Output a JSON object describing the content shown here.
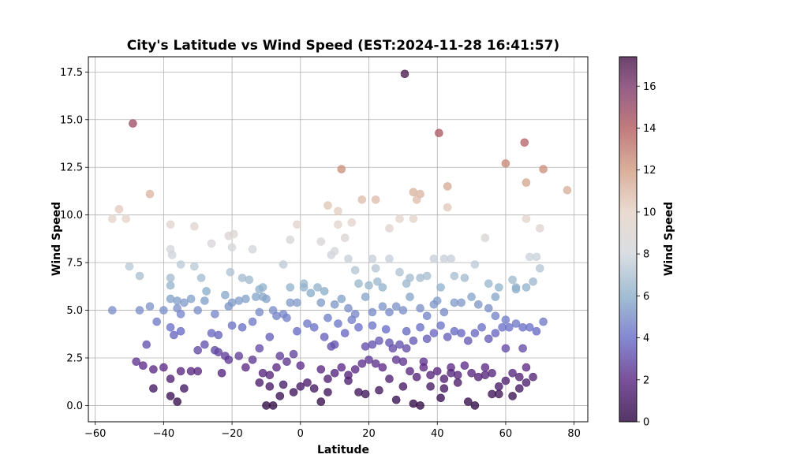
{
  "chart_data": {
    "type": "scatter",
    "title": "City's Latitude vs Wind Speed (EST:2024-11-28 16:41:57)",
    "xlabel": "Latitude",
    "ylabel": "Wind Speed",
    "xlim": [
      -62,
      84
    ],
    "ylim": [
      -0.85,
      18.3
    ],
    "xticks": [
      -60,
      -40,
      -20,
      0,
      20,
      40,
      60,
      80
    ],
    "yticks": [
      0.0,
      2.5,
      5.0,
      7.5,
      10.0,
      12.5,
      15.0,
      17.5
    ],
    "xtick_labels": [
      "−60",
      "−40",
      "−20",
      "0",
      "20",
      "40",
      "60",
      "80"
    ],
    "ytick_labels": [
      "0.0",
      "2.5",
      "5.0",
      "7.5",
      "10.0",
      "12.5",
      "15.0",
      "17.5"
    ],
    "grid": true,
    "colormap": "twilight_shifted",
    "colorbar": {
      "label": "Wind Speed",
      "range": [
        0,
        17.4
      ],
      "ticks": [
        0,
        2,
        4,
        6,
        8,
        10,
        12,
        14,
        16
      ],
      "tick_labels": [
        "0",
        "2",
        "4",
        "6",
        "8",
        "10",
        "12",
        "14",
        "16"
      ]
    },
    "colors": {
      "c0": "#2f0a44",
      "c2": "#5d2a86",
      "c4": "#6a6ec8",
      "c6": "#8db0ca",
      "c8": "#d2d6dc",
      "c10": "#e6d3c8",
      "c12": "#d29e85",
      "c14": "#b45e61",
      "c16": "#7e3a6e",
      "c17": "#4a1a4c"
    },
    "points": [
      [
        -55,
        9.8
      ],
      [
        -53,
        10.3
      ],
      [
        -51,
        9.8
      ],
      [
        -44,
        11.1
      ],
      [
        -49,
        14.8
      ],
      [
        30.5,
        17.4
      ],
      [
        40.5,
        14.3
      ],
      [
        12,
        12.4
      ],
      [
        43,
        11.5
      ],
      [
        33,
        11.2
      ],
      [
        35,
        11.1
      ],
      [
        34,
        10.8
      ],
      [
        22,
        10.8
      ],
      [
        18,
        10.8
      ],
      [
        8,
        10.5
      ],
      [
        11,
        10.2
      ],
      [
        43,
        10.4
      ],
      [
        60,
        12.7
      ],
      [
        65.5,
        13.8
      ],
      [
        66,
        11.7
      ],
      [
        71,
        12.4
      ],
      [
        78,
        11.3
      ],
      [
        -38,
        9.5
      ],
      [
        -31,
        9.4
      ],
      [
        -21,
        8.9
      ],
      [
        -19.5,
        9.0
      ],
      [
        -14,
        8.2
      ],
      [
        -3,
        8.7
      ],
      [
        -1,
        9.5
      ],
      [
        6,
        8.6
      ],
      [
        9,
        7.9
      ],
      [
        10,
        8.1
      ],
      [
        11,
        9.5
      ],
      [
        13,
        8.8
      ],
      [
        15,
        9.6
      ],
      [
        26,
        9.3
      ],
      [
        29,
        9.8
      ],
      [
        33,
        9.8
      ],
      [
        54,
        8.8
      ],
      [
        66,
        9.8
      ],
      [
        70,
        9.3
      ],
      [
        -38,
        8.2
      ],
      [
        -37.5,
        7.9
      ],
      [
        -20,
        8.3
      ],
      [
        -26,
        8.5
      ],
      [
        -50,
        7.3
      ],
      [
        -47,
        6.8
      ],
      [
        -38,
        6.7
      ],
      [
        -38,
        6.3
      ],
      [
        -35,
        7.4
      ],
      [
        -31,
        7.3
      ],
      [
        -29,
        6.7
      ],
      [
        -27.5,
        6.0
      ],
      [
        -20.5,
        7.0
      ],
      [
        -17,
        6.7
      ],
      [
        -15,
        6.6
      ],
      [
        -11,
        6.2
      ],
      [
        -5,
        7.4
      ],
      [
        -3,
        6.2
      ],
      [
        1,
        6.4
      ],
      [
        -12,
        6.1
      ],
      [
        5,
        6.2
      ],
      [
        7,
        6.0
      ],
      [
        14,
        7.7
      ],
      [
        16,
        7.1
      ],
      [
        17,
        6.4
      ],
      [
        21,
        7.7
      ],
      [
        22,
        7.2
      ],
      [
        22.5,
        6.5
      ],
      [
        24,
        6.2
      ],
      [
        26,
        7.7
      ],
      [
        29,
        7.0
      ],
      [
        31,
        6.4
      ],
      [
        32,
        6.7
      ],
      [
        35,
        6.7
      ],
      [
        37,
        6.8
      ],
      [
        39,
        7.7
      ],
      [
        42,
        7.7
      ],
      [
        44,
        7.7
      ],
      [
        48,
        6.7
      ],
      [
        51,
        7.4
      ],
      [
        55,
        6.4
      ],
      [
        58,
        6.2
      ],
      [
        62,
        6.6
      ],
      [
        63,
        6.2
      ],
      [
        66,
        6.2
      ],
      [
        67,
        7.8
      ],
      [
        69,
        7.8
      ],
      [
        70,
        7.2
      ],
      [
        68,
        6.5
      ],
      [
        20,
        6.3
      ],
      [
        41,
        6.2
      ],
      [
        45,
        6.8
      ],
      [
        -55,
        5.0
      ],
      [
        -47,
        5.0
      ],
      [
        -44,
        5.2
      ],
      [
        -42,
        4.4
      ],
      [
        -40,
        5.0
      ],
      [
        -38,
        5.6
      ],
      [
        -36,
        5.1
      ],
      [
        -34,
        5.4
      ],
      [
        -32,
        5.6
      ],
      [
        -30,
        5.0
      ],
      [
        -28,
        5.5
      ],
      [
        -25,
        4.8
      ],
      [
        -22,
        5.8
      ],
      [
        -20,
        5.4
      ],
      [
        -18,
        5.5
      ],
      [
        -16,
        5.6
      ],
      [
        -13,
        5.7
      ],
      [
        -10,
        5.6
      ],
      [
        -8,
        5.0
      ],
      [
        -5,
        4.8
      ],
      [
        -3,
        5.4
      ],
      [
        -1,
        5.4
      ],
      [
        1,
        6.2
      ],
      [
        3,
        5.9
      ],
      [
        6,
        5.4
      ],
      [
        8,
        4.6
      ],
      [
        10,
        5.3
      ],
      [
        12,
        5.6
      ],
      [
        14,
        5.1
      ],
      [
        16,
        4.8
      ],
      [
        19,
        5.7
      ],
      [
        21,
        4.9
      ],
      [
        24,
        5.2
      ],
      [
        26,
        4.9
      ],
      [
        28,
        5.2
      ],
      [
        30,
        5.0
      ],
      [
        32,
        5.7
      ],
      [
        35,
        5.1
      ],
      [
        37,
        4.7
      ],
      [
        40,
        5.5
      ],
      [
        42,
        4.9
      ],
      [
        45,
        5.4
      ],
      [
        47,
        5.4
      ],
      [
        50,
        5.7
      ],
      [
        52,
        5.3
      ],
      [
        55,
        5.1
      ],
      [
        57,
        4.7
      ],
      [
        60,
        4.5
      ],
      [
        -35,
        4.8
      ],
      [
        -36,
        5.5
      ],
      [
        -21,
        5.2
      ],
      [
        -11,
        5.7
      ],
      [
        39,
        5.3
      ],
      [
        57,
        5.7
      ],
      [
        63,
        6.1
      ],
      [
        -38,
        4.1
      ],
      [
        -35,
        3.9
      ],
      [
        -28,
        3.2
      ],
      [
        -26,
        3.8
      ],
      [
        -24,
        3.7
      ],
      [
        -20,
        4.2
      ],
      [
        -17,
        4.1
      ],
      [
        -14,
        4.4
      ],
      [
        -12,
        4.9
      ],
      [
        -9,
        3.6
      ],
      [
        -7,
        4.7
      ],
      [
        -4,
        4.6
      ],
      [
        -1,
        3.9
      ],
      [
        2,
        4.3
      ],
      [
        4,
        4.1
      ],
      [
        7,
        3.6
      ],
      [
        9,
        3.1
      ],
      [
        11,
        4.3
      ],
      [
        13,
        3.8
      ],
      [
        15,
        4.5
      ],
      [
        17,
        4.1
      ],
      [
        19,
        3.1
      ],
      [
        21,
        4.2
      ],
      [
        23,
        3.4
      ],
      [
        25,
        4.0
      ],
      [
        27,
        3.0
      ],
      [
        29,
        3.2
      ],
      [
        31,
        3.9
      ],
      [
        33,
        3.4
      ],
      [
        35,
        4.1
      ],
      [
        37,
        3.5
      ],
      [
        39,
        3.8
      ],
      [
        41,
        4.2
      ],
      [
        43,
        3.6
      ],
      [
        45,
        3.9
      ],
      [
        47,
        3.8
      ],
      [
        49,
        3.4
      ],
      [
        51,
        3.8
      ],
      [
        53,
        4.1
      ],
      [
        55,
        3.5
      ],
      [
        57,
        3.8
      ],
      [
        59,
        4.1
      ],
      [
        61,
        4.1
      ],
      [
        63,
        4.3
      ],
      [
        65,
        4.1
      ],
      [
        67,
        4.1
      ],
      [
        69,
        3.9
      ],
      [
        71,
        4.4
      ],
      [
        -45,
        3.2
      ],
      [
        -37,
        3.7
      ],
      [
        -30,
        2.9
      ],
      [
        -22,
        2.6
      ],
      [
        -12,
        3.0
      ],
      [
        -6,
        2.6
      ],
      [
        10,
        3.2
      ],
      [
        26,
        3.3
      ],
      [
        -48,
        2.3
      ],
      [
        -46,
        2.1
      ],
      [
        -43,
        1.9
      ],
      [
        -38,
        1.4
      ],
      [
        -35,
        1.8
      ],
      [
        -32,
        1.8
      ],
      [
        -30,
        1.8
      ],
      [
        -24,
        2.8
      ],
      [
        -23,
        1.7
      ],
      [
        -21,
        2.4
      ],
      [
        -18,
        2.6
      ],
      [
        -16,
        2.0
      ],
      [
        -14,
        2.4
      ],
      [
        -11,
        1.7
      ],
      [
        -9,
        1.6
      ],
      [
        -7,
        2.0
      ],
      [
        -4,
        2.3
      ],
      [
        -2,
        2.7
      ],
      [
        0,
        2.1
      ],
      [
        2,
        1.2
      ],
      [
        4,
        0.9
      ],
      [
        6,
        1.9
      ],
      [
        8,
        1.4
      ],
      [
        10,
        1.7
      ],
      [
        12,
        2.0
      ],
      [
        14,
        1.6
      ],
      [
        16,
        1.9
      ],
      [
        18,
        2.2
      ],
      [
        20,
        2.4
      ],
      [
        22,
        2.2
      ],
      [
        24,
        2.0
      ],
      [
        26,
        1.4
      ],
      [
        28,
        2.4
      ],
      [
        30,
        2.3
      ],
      [
        32,
        1.8
      ],
      [
        34,
        1.5
      ],
      [
        36,
        2.3
      ],
      [
        38,
        1.6
      ],
      [
        40,
        1.8
      ],
      [
        42,
        1.4
      ],
      [
        44,
        2.0
      ],
      [
        46,
        1.6
      ],
      [
        48,
        2.1
      ],
      [
        50,
        1.7
      ],
      [
        52,
        1.5
      ],
      [
        54,
        2.0
      ],
      [
        56,
        1.7
      ],
      [
        58,
        1.0
      ],
      [
        60,
        1.3
      ],
      [
        62,
        1.7
      ],
      [
        64,
        1.5
      ],
      [
        66,
        2.0
      ],
      [
        68,
        1.5
      ],
      [
        -43,
        0.9
      ],
      [
        -38,
        0.5
      ],
      [
        -36,
        0.2
      ],
      [
        -34,
        0.9
      ],
      [
        -10,
        0.0
      ],
      [
        -8,
        0.0
      ],
      [
        -6,
        0.5
      ],
      [
        -2,
        0.7
      ],
      [
        6,
        0.2
      ],
      [
        8,
        0.7
      ],
      [
        17,
        0.7
      ],
      [
        19,
        0.6
      ],
      [
        23,
        0.8
      ],
      [
        28,
        0.3
      ],
      [
        33,
        0.1
      ],
      [
        35,
        0.0
      ],
      [
        41,
        0.4
      ],
      [
        49,
        0.2
      ],
      [
        51,
        0.0
      ],
      [
        56,
        0.6
      ],
      [
        58,
        0.6
      ],
      [
        62,
        0.5
      ],
      [
        -9,
        1.0
      ],
      [
        -5,
        1.1
      ],
      [
        0,
        1.0
      ],
      [
        -12,
        1.2
      ],
      [
        14,
        1.3
      ],
      [
        30,
        1.0
      ],
      [
        38,
        1.0
      ],
      [
        42,
        0.9
      ],
      [
        46,
        1.2
      ],
      [
        64,
        0.9
      ],
      [
        66,
        1.2
      ],
      [
        54,
        1.6
      ],
      [
        -40,
        2.0
      ],
      [
        44,
        1.7
      ],
      [
        36,
        2.0
      ],
      [
        31,
        3.0
      ],
      [
        21,
        3.2
      ],
      [
        -25,
        2.9
      ],
      [
        60,
        3.0
      ],
      [
        65,
        3.0
      ]
    ]
  }
}
